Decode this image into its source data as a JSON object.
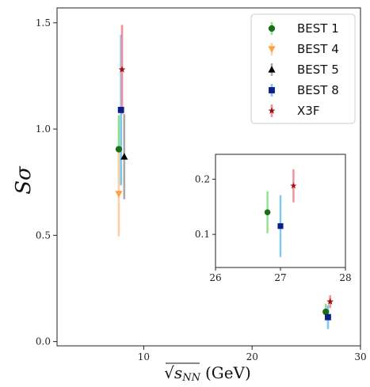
{
  "chart_data": {
    "type": "scatter",
    "xlabel_prefix": "√",
    "xlabel_var": "s",
    "xlabel_sub": "NN",
    "xlabel_unit": "(GeV)",
    "ylabel_s": "S",
    "ylabel_sigma": "σ",
    "xlim": [
      2,
      30
    ],
    "ylim": [
      -0.02,
      1.57
    ],
    "xticks": [
      10,
      20,
      30
    ],
    "xtick_labels": [
      "10",
      "20",
      "30"
    ],
    "yticks": [
      0.0,
      0.5,
      1.0,
      1.5
    ],
    "ytick_labels": [
      "0.0",
      "0.5",
      "1.0",
      "1.5"
    ],
    "legend_position": "top-right",
    "series": [
      {
        "name": "BEST 1",
        "marker": "circle",
        "color": "#1a6e1a",
        "errcolor": "#90e090",
        "points": [
          {
            "x": 7.7,
            "y": 0.905,
            "yerr": 0.16
          },
          {
            "x": 26.8,
            "y": 0.14,
            "yerr": 0.038
          }
        ]
      },
      {
        "name": "BEST 4",
        "marker": "triangle-down",
        "color": "#ffa040",
        "errcolor": "#ffd0a8",
        "points": [
          {
            "x": 7.7,
            "y": 0.695,
            "yerr": 0.2
          }
        ]
      },
      {
        "name": "BEST 5",
        "marker": "triangle-up",
        "color": "#000000",
        "errcolor": "#aaaaaa",
        "points": [
          {
            "x": 8.2,
            "y": 0.87,
            "yerr": 0.2
          }
        ]
      },
      {
        "name": "BEST 8",
        "marker": "square",
        "color": "#0a1e8c",
        "errcolor": "#80c8f0",
        "points": [
          {
            "x": 7.9,
            "y": 1.09,
            "yerr": 0.355
          },
          {
            "x": 27.0,
            "y": 0.115,
            "yerr": 0.056
          }
        ]
      },
      {
        "name": "X3F",
        "marker": "star",
        "color": "#a01010",
        "errcolor": "#f09098",
        "points": [
          {
            "x": 8.0,
            "y": 1.28,
            "yerr": 0.21
          },
          {
            "x": 27.2,
            "y": 0.188,
            "yerr": 0.03
          }
        ]
      }
    ],
    "inset": {
      "xlim": [
        26,
        28
      ],
      "ylim": [
        0.04,
        0.245
      ],
      "xticks": [
        26,
        27,
        28
      ],
      "xtick_labels": [
        "26",
        "27",
        "28"
      ],
      "yticks": [
        0.1,
        0.2
      ],
      "ytick_labels": [
        "0.1",
        "0.2"
      ]
    }
  }
}
